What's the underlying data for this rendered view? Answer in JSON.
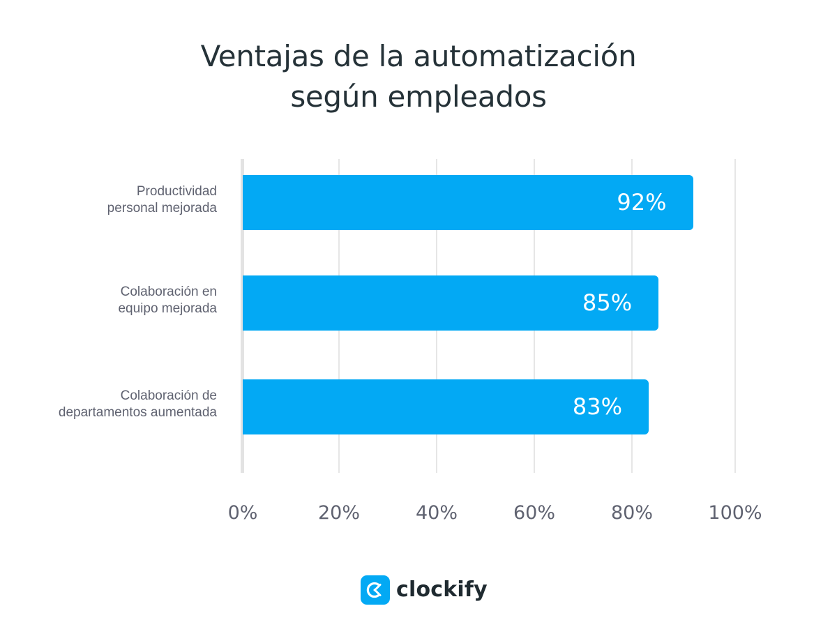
{
  "chart_data": {
    "type": "bar",
    "orientation": "horizontal",
    "title": "Ventajas de la automatización según empleados",
    "title_lines": [
      "Ventajas de la automatización",
      "según empleados"
    ],
    "categories": [
      "Productividad personal mejorada",
      "Colaboración en equipo mejorada",
      "Colaboración de departamentos aumentada"
    ],
    "category_lines": [
      [
        "Productividad",
        "personal mejorada"
      ],
      [
        "Colaboración en",
        "equipo mejorada"
      ],
      [
        "Colaboración de",
        "departamentos aumentada"
      ]
    ],
    "values": [
      92,
      85,
      83
    ],
    "value_labels": [
      "92%",
      "85%",
      "83%"
    ],
    "xlabel": "",
    "ylabel": "",
    "xlim": [
      0,
      100
    ],
    "x_ticks": [
      "0%",
      "20%",
      "40%",
      "60%",
      "80%",
      "100%"
    ],
    "grid": true,
    "legend": null,
    "bar_color": "#03a9f4"
  },
  "branding": {
    "logo_text": "clockify",
    "logo_color": "#03a9f4"
  }
}
